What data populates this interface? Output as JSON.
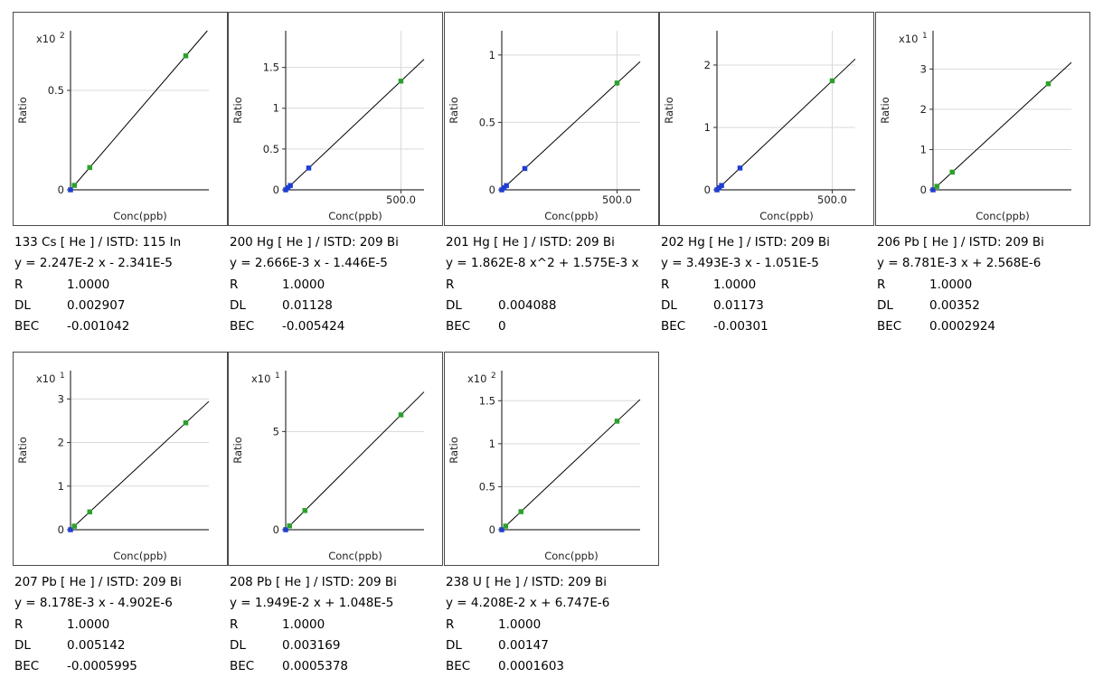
{
  "colors": {
    "standard": "#2ca02c",
    "blank": "#1f3fd0",
    "line": "#000000",
    "grid": "#d9d9d9",
    "axis": "#333333"
  },
  "chart_data": [
    {
      "type": "scatter",
      "title": "133 Cs [ He ] / ISTD: 115 In",
      "equation": "y = 2.247E-2 x - 2.341E-5",
      "R": "1.0000",
      "DL": "0.002907",
      "BEC": "-0.001042",
      "xlabel": "Conc(ppb)",
      "ylabel": "Ratio",
      "multiplier": "x10",
      "exponent": "2",
      "xmax": 36,
      "ymax": 0.8,
      "yticks": [
        0,
        0.5
      ],
      "ytick_labels": [
        "0",
        "0.5"
      ],
      "xticks": [],
      "xtick_labels": [],
      "points": [
        {
          "x": 0,
          "y": 0,
          "c": "blank"
        },
        {
          "x": 1,
          "y": 0.0225,
          "c": "standard"
        },
        {
          "x": 5,
          "y": 0.112,
          "c": "standard"
        },
        {
          "x": 30,
          "y": 0.674,
          "c": "standard"
        }
      ]
    },
    {
      "type": "scatter",
      "title": "200 Hg [ He ] / ISTD: 209 Bi",
      "equation": "y = 2.666E-3 x - 1.446E-5",
      "R": "1.0000",
      "DL": "0.01128",
      "BEC": "-0.005424",
      "xlabel": "Conc(ppb)",
      "ylabel": "Ratio",
      "multiplier": "",
      "exponent": "",
      "xmax": 600,
      "ymax": 1.95,
      "yticks": [
        0,
        0.5,
        1,
        1.5
      ],
      "ytick_labels": [
        "0",
        "0.5",
        "1",
        "1.5"
      ],
      "xticks": [
        500
      ],
      "xtick_labels": [
        "500.0"
      ],
      "points": [
        {
          "x": 0,
          "y": 0,
          "c": "blank"
        },
        {
          "x": 10,
          "y": 0.0267,
          "c": "blank"
        },
        {
          "x": 20,
          "y": 0.0533,
          "c": "blank"
        },
        {
          "x": 100,
          "y": 0.267,
          "c": "blank"
        },
        {
          "x": 500,
          "y": 1.333,
          "c": "standard"
        }
      ]
    },
    {
      "type": "scatter",
      "title": "201 Hg [ He ] / ISTD: 209 Bi",
      "equation": "y = 1.862E-8 x^2 + 1.575E-3 x",
      "R": "",
      "DL": "0.004088",
      "BEC": "0",
      "xlabel": "Conc(ppb)",
      "ylabel": "Ratio",
      "multiplier": "",
      "exponent": "",
      "xmax": 600,
      "ymax": 1.18,
      "yticks": [
        0,
        0.5,
        1
      ],
      "ytick_labels": [
        "0",
        "0.5",
        "1"
      ],
      "xticks": [
        500
      ],
      "xtick_labels": [
        "500.0"
      ],
      "points": [
        {
          "x": 0,
          "y": 0,
          "c": "blank"
        },
        {
          "x": 10,
          "y": 0.0158,
          "c": "blank"
        },
        {
          "x": 20,
          "y": 0.0315,
          "c": "blank"
        },
        {
          "x": 100,
          "y": 0.158,
          "c": "blank"
        },
        {
          "x": 500,
          "y": 0.792,
          "c": "standard"
        }
      ]
    },
    {
      "type": "scatter",
      "title": "202 Hg [ He ] / ISTD: 209 Bi",
      "equation": "y = 3.493E-3 x - 1.051E-5",
      "R": "1.0000",
      "DL": "0.01173",
      "BEC": "-0.00301",
      "xlabel": "Conc(ppb)",
      "ylabel": "Ratio",
      "multiplier": "",
      "exponent": "",
      "xmax": 600,
      "ymax": 2.55,
      "yticks": [
        0,
        1,
        2
      ],
      "ytick_labels": [
        "0",
        "1",
        "2"
      ],
      "xticks": [
        500
      ],
      "xtick_labels": [
        "500.0"
      ],
      "points": [
        {
          "x": 0,
          "y": 0,
          "c": "blank"
        },
        {
          "x": 10,
          "y": 0.0349,
          "c": "blank"
        },
        {
          "x": 20,
          "y": 0.0699,
          "c": "blank"
        },
        {
          "x": 100,
          "y": 0.349,
          "c": "blank"
        },
        {
          "x": 500,
          "y": 1.747,
          "c": "standard"
        }
      ]
    },
    {
      "type": "scatter",
      "title": "206 Pb [ He ] / ISTD: 209 Bi",
      "equation": "y = 8.781E-3 x + 2.568E-6",
      "R": "1.0000",
      "DL": "0.00352",
      "BEC": "0.0002924",
      "xlabel": "Conc(ppb)",
      "ylabel": "Ratio",
      "multiplier": "x10",
      "exponent": "1",
      "xmax": 36,
      "ymax": 3.95,
      "yticks": [
        0,
        1,
        2,
        3
      ],
      "ytick_labels": [
        "0",
        "1",
        "2",
        "3"
      ],
      "xticks": [],
      "xtick_labels": [],
      "points": [
        {
          "x": 0,
          "y": 0,
          "c": "blank"
        },
        {
          "x": 1,
          "y": 0.0878,
          "c": "standard"
        },
        {
          "x": 5,
          "y": 0.439,
          "c": "standard"
        },
        {
          "x": 30,
          "y": 2.634,
          "c": "standard"
        }
      ]
    },
    {
      "type": "scatter",
      "title": "207 Pb [ He ] / ISTD: 209 Bi",
      "equation": "y = 8.178E-3 x - 4.902E-6",
      "R": "1.0000",
      "DL": "0.005142",
      "BEC": "-0.0005995",
      "xlabel": "Conc(ppb)",
      "ylabel": "Ratio",
      "multiplier": "x10",
      "exponent": "1",
      "xmax": 36,
      "ymax": 3.65,
      "yticks": [
        0,
        1,
        2,
        3
      ],
      "ytick_labels": [
        "0",
        "1",
        "2",
        "3"
      ],
      "xticks": [],
      "xtick_labels": [],
      "points": [
        {
          "x": 0,
          "y": 0,
          "c": "blank"
        },
        {
          "x": 1,
          "y": 0.0818,
          "c": "standard"
        },
        {
          "x": 5,
          "y": 0.409,
          "c": "standard"
        },
        {
          "x": 30,
          "y": 2.453,
          "c": "standard"
        }
      ]
    },
    {
      "type": "scatter",
      "title": "208 Pb [ He ] / ISTD: 209 Bi",
      "equation": "y = 1.949E-2 x + 1.048E-5",
      "R": "1.0000",
      "DL": "0.003169",
      "BEC": "0.0005378",
      "xlabel": "Conc(ppb)",
      "ylabel": "Ratio",
      "multiplier": "x10",
      "exponent": "1",
      "xmax": 36,
      "ymax": 8.1,
      "yticks": [
        0,
        5
      ],
      "ytick_labels": [
        "0",
        "5"
      ],
      "xticks": [],
      "xtick_labels": [],
      "points": [
        {
          "x": 0,
          "y": 0,
          "c": "blank"
        },
        {
          "x": 1,
          "y": 0.195,
          "c": "standard"
        },
        {
          "x": 5,
          "y": 0.975,
          "c": "standard"
        },
        {
          "x": 30,
          "y": 5.847,
          "c": "standard"
        }
      ]
    },
    {
      "type": "scatter",
      "title": "238 U [ He ] / ISTD: 209 Bi",
      "equation": "y = 4.208E-2 x + 6.747E-6",
      "R": "1.0000",
      "DL": "0.00147",
      "BEC": "0.0001603",
      "xlabel": "Conc(ppb)",
      "ylabel": "Ratio",
      "multiplier": "x10",
      "exponent": "2",
      "xmax": 36,
      "ymax": 1.85,
      "yticks": [
        0,
        0.5,
        1,
        1.5
      ],
      "ytick_labels": [
        "0",
        "0.5",
        "1",
        "1.5"
      ],
      "xticks": [],
      "xtick_labels": [],
      "points": [
        {
          "x": 0,
          "y": 0,
          "c": "blank"
        },
        {
          "x": 1,
          "y": 0.042,
          "c": "standard"
        },
        {
          "x": 5,
          "y": 0.21,
          "c": "standard"
        },
        {
          "x": 30,
          "y": 1.262,
          "c": "standard"
        }
      ]
    }
  ]
}
